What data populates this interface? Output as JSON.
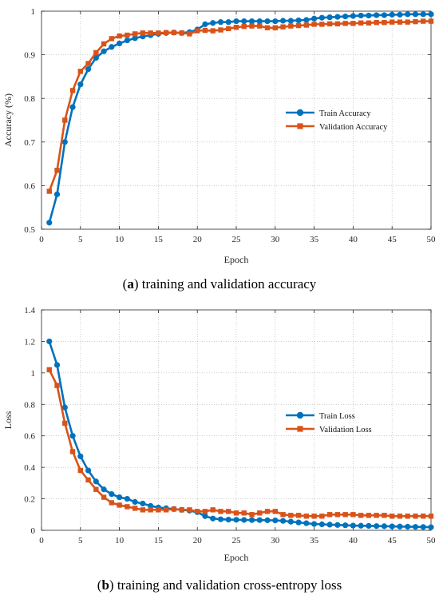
{
  "colors": {
    "train": "#0072BD",
    "validation": "#D95319",
    "axis": "#262626",
    "grid": "#B0B0B0"
  },
  "chart_data": [
    {
      "type": "line",
      "caption_letter": "a",
      "caption_text": " training and validation accuracy",
      "xlabel": "Epoch",
      "ylabel": "Accuracy (%)",
      "xlim": [
        0,
        50
      ],
      "ylim": [
        0.5,
        1.0
      ],
      "xticks": [
        "0",
        "5",
        "10",
        "15",
        "20",
        "25",
        "30",
        "35",
        "40",
        "45",
        "50"
      ],
      "yticks": [
        "0.5",
        "0.6",
        "0.7",
        "0.8",
        "0.9",
        "1"
      ],
      "grid": true,
      "legend_position": "center-right",
      "x": [
        1,
        2,
        3,
        4,
        5,
        6,
        7,
        8,
        9,
        10,
        11,
        12,
        13,
        14,
        15,
        16,
        17,
        18,
        19,
        20,
        21,
        22,
        23,
        24,
        25,
        26,
        27,
        28,
        29,
        30,
        31,
        32,
        33,
        34,
        35,
        36,
        37,
        38,
        39,
        40,
        41,
        42,
        43,
        44,
        45,
        46,
        47,
        48,
        49,
        50
      ],
      "series": [
        {
          "name": "Train Accuracy",
          "marker": "circle",
          "values": [
            0.515,
            0.58,
            0.7,
            0.78,
            0.832,
            0.867,
            0.893,
            0.908,
            0.918,
            0.926,
            0.933,
            0.938,
            0.942,
            0.945,
            0.948,
            0.95,
            0.951,
            0.95,
            0.952,
            0.958,
            0.97,
            0.973,
            0.975,
            0.975,
            0.977,
            0.977,
            0.977,
            0.977,
            0.977,
            0.977,
            0.978,
            0.978,
            0.979,
            0.98,
            0.983,
            0.985,
            0.986,
            0.987,
            0.988,
            0.989,
            0.99,
            0.99,
            0.991,
            0.991,
            0.992,
            0.992,
            0.993,
            0.993,
            0.993,
            0.993
          ]
        },
        {
          "name": "Validation Accuracy",
          "marker": "square",
          "values": [
            0.587,
            0.635,
            0.75,
            0.818,
            0.862,
            0.88,
            0.905,
            0.925,
            0.937,
            0.943,
            0.945,
            0.948,
            0.95,
            0.95,
            0.95,
            0.951,
            0.951,
            0.95,
            0.948,
            0.955,
            0.956,
            0.955,
            0.957,
            0.96,
            0.963,
            0.965,
            0.966,
            0.966,
            0.962,
            0.962,
            0.964,
            0.966,
            0.967,
            0.968,
            0.97,
            0.97,
            0.971,
            0.971,
            0.972,
            0.972,
            0.973,
            0.973,
            0.974,
            0.974,
            0.975,
            0.975,
            0.975,
            0.976,
            0.977,
            0.977
          ]
        }
      ]
    },
    {
      "type": "line",
      "caption_letter": "b",
      "caption_text": " training and validation cross-entropy loss",
      "xlabel": "Epoch",
      "ylabel": "Loss",
      "xlim": [
        0,
        50
      ],
      "ylim": [
        0,
        1.4
      ],
      "xticks": [
        "0",
        "5",
        "10",
        "15",
        "20",
        "25",
        "30",
        "35",
        "40",
        "45",
        "50"
      ],
      "yticks": [
        "0",
        "0.2",
        "0.4",
        "0.6",
        "0.8",
        "1",
        "1.2",
        "1.4"
      ],
      "grid": true,
      "legend_position": "center-right",
      "x": [
        1,
        2,
        3,
        4,
        5,
        6,
        7,
        8,
        9,
        10,
        11,
        12,
        13,
        14,
        15,
        16,
        17,
        18,
        19,
        20,
        21,
        22,
        23,
        24,
        25,
        26,
        27,
        28,
        29,
        30,
        31,
        32,
        33,
        34,
        35,
        36,
        37,
        38,
        39,
        40,
        41,
        42,
        43,
        44,
        45,
        46,
        47,
        48,
        49,
        50
      ],
      "series": [
        {
          "name": "Train Loss",
          "marker": "circle",
          "values": [
            1.2,
            1.05,
            0.78,
            0.6,
            0.47,
            0.38,
            0.31,
            0.26,
            0.23,
            0.21,
            0.2,
            0.18,
            0.17,
            0.155,
            0.145,
            0.14,
            0.135,
            0.13,
            0.125,
            0.115,
            0.09,
            0.075,
            0.07,
            0.068,
            0.067,
            0.066,
            0.065,
            0.065,
            0.064,
            0.063,
            0.06,
            0.055,
            0.05,
            0.045,
            0.04,
            0.038,
            0.036,
            0.034,
            0.032,
            0.03,
            0.029,
            0.028,
            0.027,
            0.026,
            0.025,
            0.024,
            0.023,
            0.022,
            0.021,
            0.02
          ]
        },
        {
          "name": "Validation Loss",
          "marker": "square",
          "values": [
            1.02,
            0.92,
            0.68,
            0.5,
            0.38,
            0.32,
            0.26,
            0.21,
            0.175,
            0.16,
            0.15,
            0.14,
            0.13,
            0.13,
            0.13,
            0.13,
            0.135,
            0.13,
            0.13,
            0.12,
            0.12,
            0.13,
            0.12,
            0.12,
            0.11,
            0.11,
            0.1,
            0.11,
            0.12,
            0.12,
            0.1,
            0.095,
            0.095,
            0.09,
            0.09,
            0.09,
            0.1,
            0.1,
            0.1,
            0.1,
            0.095,
            0.095,
            0.095,
            0.095,
            0.09,
            0.09,
            0.09,
            0.09,
            0.09,
            0.09
          ]
        }
      ]
    }
  ]
}
